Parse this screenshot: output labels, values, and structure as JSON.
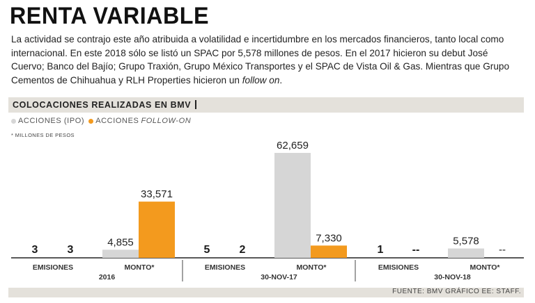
{
  "title": "RENTA VARIABLE",
  "intro": {
    "text_main": "La actividad se contrajo este año atribuida a volatilidad e incertidumbre en los mercados financieros, tanto local como internacional. En este 2018 sólo se listó un SPAC por 5,578 millones de pesos. En el 2017 hicieron su debut José Cuervo; Banco del Bajío; Grupo Traxión, Grupo México Transportes y el SPAC de Vista Oil & Gas. Mientras que Grupo Cementos de Chihuahua y RLH Properties hicieron un",
    "text_italic": "follow on",
    "text_end": "."
  },
  "section_header": "COLOCACIONES REALIZADAS EN BMV",
  "legend": {
    "ipo_label": "ACCIONES (IPO)",
    "follow_label_prefix": "ACCIONES",
    "follow_label_italic": "FOLLOW-ON"
  },
  "units_note": "* MILLONES DE PESOS",
  "source": "FUENTE: BMV GRÁFICO EE: STAFF.",
  "colors": {
    "ipo": "#d6d6d6",
    "follow_on": "#f39a1e",
    "axis": "#222222",
    "band": "#e4e1db"
  },
  "chart_data": {
    "type": "bar",
    "series": [
      {
        "name": "ACCIONES (IPO)"
      },
      {
        "name": "ACCIONES FOLLOW-ON"
      }
    ],
    "groups": [
      {
        "period": "2016",
        "emisiones": {
          "label": "EMISIONES",
          "ipo": "3",
          "follow_on": "3"
        },
        "monto": {
          "label": "MONTO*",
          "ipo": 4855,
          "follow_on": 33571,
          "ipo_label": "4,855",
          "follow_on_label": "33,571"
        }
      },
      {
        "period": "30-NOV-17",
        "emisiones": {
          "label": "EMISIONES",
          "ipo": "5",
          "follow_on": "2"
        },
        "monto": {
          "label": "MONTO*",
          "ipo": 62659,
          "follow_on": 7330,
          "ipo_label": "62,659",
          "follow_on_label": "7,330"
        }
      },
      {
        "period": "30-NOV-18",
        "emisiones": {
          "label": "EMISIONES",
          "ipo": "1",
          "follow_on": "--"
        },
        "monto": {
          "label": "MONTO*",
          "ipo": 5578,
          "follow_on": 0,
          "ipo_label": "5,578",
          "follow_on_label": "--"
        }
      }
    ],
    "ylim": [
      0,
      62659
    ]
  }
}
